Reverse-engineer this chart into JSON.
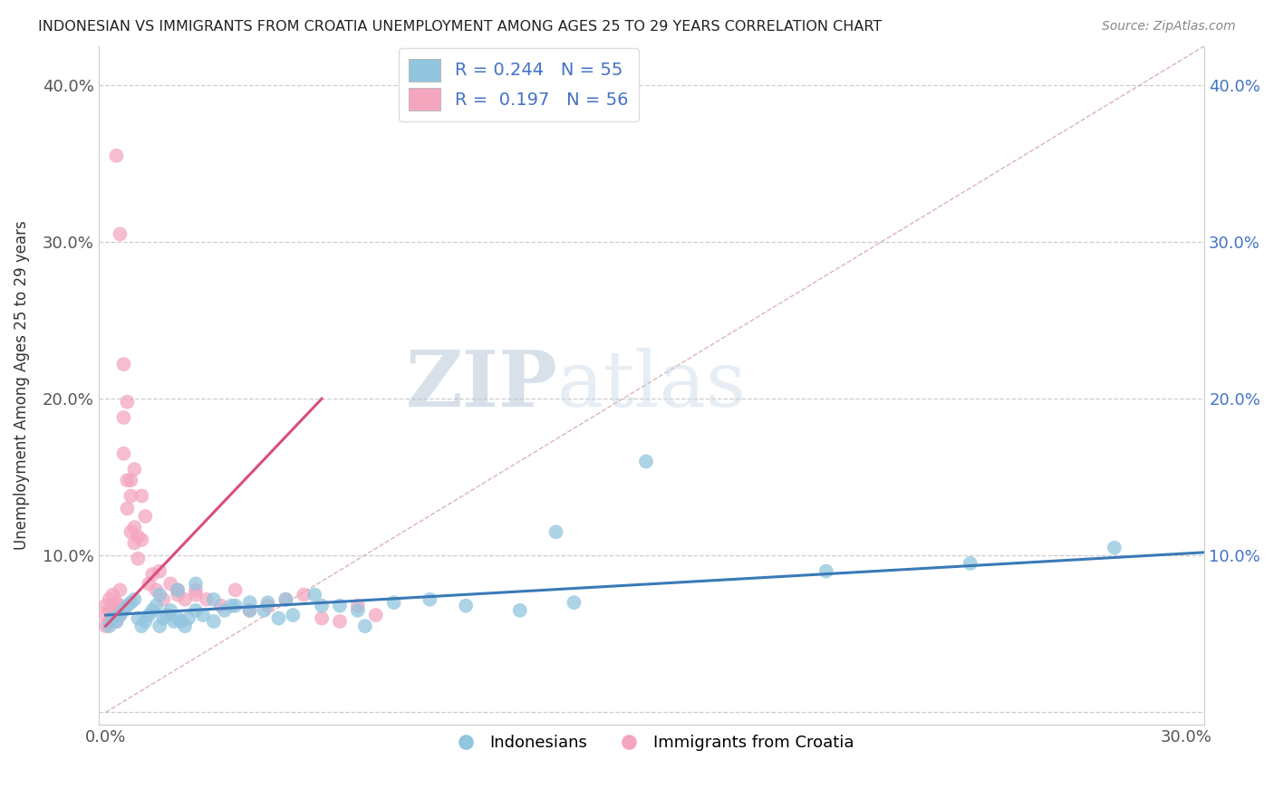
{
  "title": "INDONESIAN VS IMMIGRANTS FROM CROATIA UNEMPLOYMENT AMONG AGES 25 TO 29 YEARS CORRELATION CHART",
  "source": "Source: ZipAtlas.com",
  "ylabel": "Unemployment Among Ages 25 to 29 years",
  "xmin": -0.002,
  "xmax": 0.305,
  "ymin": -0.008,
  "ymax": 0.425,
  "yticks": [
    0.0,
    0.1,
    0.2,
    0.3,
    0.4
  ],
  "ytick_labels": [
    "",
    "10.0%",
    "20.0%",
    "30.0%",
    "40.0%"
  ],
  "legend_blue_r": "0.244",
  "legend_blue_n": "55",
  "legend_pink_r": "0.197",
  "legend_pink_n": "56",
  "legend_label_blue": "Indonesians",
  "legend_label_pink": "Immigrants from Croatia",
  "blue_color": "#92c5de",
  "pink_color": "#f4a6bf",
  "trend_blue": "#3a7ab8",
  "trend_pink": "#d94f7a",
  "diagonal_color": "#d8b4b4",
  "watermark_zip": "ZIP",
  "watermark_atlas": "atlas",
  "blue_x": [
    0.001,
    0.002,
    0.003,
    0.004,
    0.005,
    0.006,
    0.007,
    0.008,
    0.009,
    0.01,
    0.011,
    0.012,
    0.013,
    0.014,
    0.015,
    0.016,
    0.017,
    0.018,
    0.019,
    0.02,
    0.021,
    0.022,
    0.023,
    0.025,
    0.027,
    0.03,
    0.033,
    0.036,
    0.04,
    0.044,
    0.048,
    0.052,
    0.058,
    0.065,
    0.072,
    0.08,
    0.09,
    0.1,
    0.115,
    0.13,
    0.015,
    0.02,
    0.025,
    0.03,
    0.035,
    0.04,
    0.045,
    0.05,
    0.06,
    0.07,
    0.15,
    0.2,
    0.24,
    0.28,
    0.125
  ],
  "blue_y": [
    0.055,
    0.06,
    0.058,
    0.062,
    0.065,
    0.068,
    0.07,
    0.072,
    0.06,
    0.055,
    0.058,
    0.062,
    0.065,
    0.068,
    0.055,
    0.06,
    0.062,
    0.065,
    0.058,
    0.06,
    0.058,
    0.055,
    0.06,
    0.065,
    0.062,
    0.058,
    0.065,
    0.068,
    0.07,
    0.065,
    0.06,
    0.062,
    0.075,
    0.068,
    0.055,
    0.07,
    0.072,
    0.068,
    0.065,
    0.07,
    0.075,
    0.078,
    0.082,
    0.072,
    0.068,
    0.065,
    0.07,
    0.072,
    0.068,
    0.065,
    0.16,
    0.09,
    0.095,
    0.105,
    0.115
  ],
  "pink_x": [
    0.0,
    0.0,
    0.0,
    0.001,
    0.001,
    0.001,
    0.002,
    0.002,
    0.002,
    0.003,
    0.003,
    0.003,
    0.004,
    0.004,
    0.004,
    0.005,
    0.005,
    0.006,
    0.006,
    0.007,
    0.007,
    0.008,
    0.008,
    0.009,
    0.009,
    0.01,
    0.01,
    0.011,
    0.012,
    0.013,
    0.014,
    0.015,
    0.016,
    0.018,
    0.02,
    0.022,
    0.025,
    0.028,
    0.032,
    0.036,
    0.04,
    0.045,
    0.05,
    0.055,
    0.06,
    0.065,
    0.07,
    0.075,
    0.02,
    0.025,
    0.005,
    0.006,
    0.007,
    0.008,
    0.003,
    0.004
  ],
  "pink_y": [
    0.055,
    0.062,
    0.068,
    0.058,
    0.065,
    0.072,
    0.06,
    0.068,
    0.075,
    0.065,
    0.07,
    0.058,
    0.062,
    0.068,
    0.078,
    0.165,
    0.188,
    0.148,
    0.13,
    0.138,
    0.115,
    0.108,
    0.155,
    0.112,
    0.098,
    0.138,
    0.11,
    0.125,
    0.082,
    0.088,
    0.078,
    0.09,
    0.072,
    0.082,
    0.078,
    0.072,
    0.075,
    0.072,
    0.068,
    0.078,
    0.065,
    0.068,
    0.072,
    0.075,
    0.06,
    0.058,
    0.068,
    0.062,
    0.075,
    0.078,
    0.222,
    0.198,
    0.148,
    0.118,
    0.355,
    0.305
  ],
  "pink_trend_x0": 0.0,
  "pink_trend_x1": 0.06,
  "pink_trend_y0": 0.055,
  "pink_trend_y1": 0.2,
  "blue_trend_x0": 0.0,
  "blue_trend_x1": 0.305,
  "blue_trend_y0": 0.062,
  "blue_trend_y1": 0.102
}
